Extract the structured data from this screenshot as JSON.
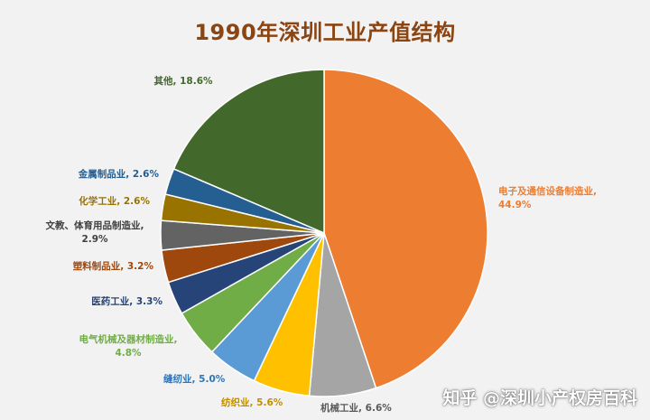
{
  "chart_data": {
    "type": "pie",
    "title": "1990年深圳工业产值结构",
    "unit": "%",
    "slices": [
      {
        "name": "电子及通信设备制造业",
        "value": 44.9,
        "label": "电子及通信设备制造业, 44.9%",
        "color": "#ed7d31",
        "label_color": "#ed7d31"
      },
      {
        "name": "机械工业",
        "value": 6.6,
        "label": "机械工业, 6.6%",
        "color": "#a5a5a5",
        "label_color": "#595959"
      },
      {
        "name": "纺织业",
        "value": 5.6,
        "label": "纺织业, 5.6%",
        "color": "#ffc000",
        "label_color": "#bf8f00"
      },
      {
        "name": "缝纫业",
        "value": 5.0,
        "label": "缝纫业, 5.0%",
        "color": "#5b9bd5",
        "label_color": "#2e75b6"
      },
      {
        "name": "电气机械及器材制造业",
        "value": 4.8,
        "label": "电气机械及器材制造业, 4.8%",
        "color": "#70ad47",
        "label_color": "#70ad47"
      },
      {
        "name": "医药工业",
        "value": 3.3,
        "label": "医药工业, 3.3%",
        "color": "#264478",
        "label_color": "#264478"
      },
      {
        "name": "塑料制品业",
        "value": 3.2,
        "label": "塑料制品业, 3.2%",
        "color": "#9e480e",
        "label_color": "#9e480e"
      },
      {
        "name": "文教、体育用品制造业",
        "value": 2.9,
        "label": "文教、体育用品制造业, 2.9%",
        "color": "#636363",
        "label_color": "#404040"
      },
      {
        "name": "化学工业",
        "value": 2.6,
        "label": "化学工业, 2.6%",
        "color": "#997300",
        "label_color": "#997300"
      },
      {
        "name": "金属制品业",
        "value": 2.6,
        "label": "金属制品业, 2.6%",
        "color": "#255e91",
        "label_color": "#255e91"
      },
      {
        "name": "其他",
        "value": 18.6,
        "label": "其他, 18.6%",
        "color": "#43682b",
        "label_color": "#43682b"
      }
    ]
  },
  "watermark": "知乎 @深圳小产权房百科"
}
